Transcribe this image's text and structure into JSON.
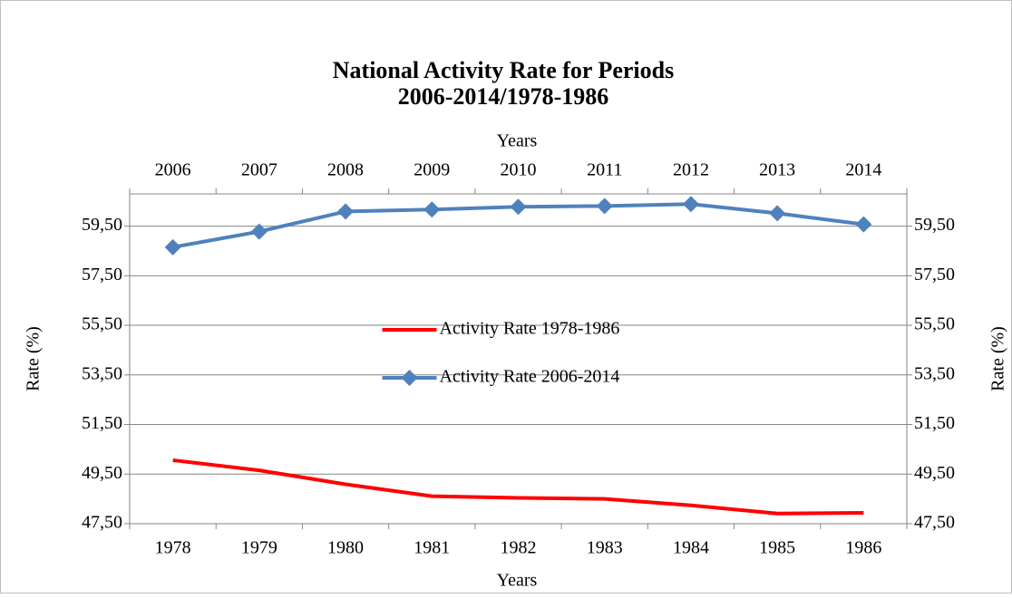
{
  "chart_data": {
    "type": "line",
    "title": [
      "National Activity Rate for Periods",
      "2006-2014/1978-1986"
    ],
    "x_label": "Years",
    "x2_label": "Years",
    "y_label": "Rate (%)",
    "y2_label": "Rate (%)",
    "categories": [
      "1978",
      "1979",
      "1980",
      "1981",
      "1982",
      "1983",
      "1984",
      "1985",
      "1986"
    ],
    "top_categories": [
      "2006",
      "2007",
      "2008",
      "2009",
      "2010",
      "2011",
      "2012",
      "2013",
      "2014"
    ],
    "series": [
      {
        "name": "Activity Rate 1978-1986",
        "color": "#ff0000",
        "x_axis": "bottom",
        "marker": "none",
        "values": [
          50.06,
          49.65,
          49.09,
          48.61,
          48.54,
          48.5,
          48.24,
          47.91,
          47.94
        ]
      },
      {
        "name": "Activity Rate 2006-2014",
        "color": "#4f81bd",
        "x_axis": "top",
        "marker": "diamond",
        "values": [
          58.65,
          59.28,
          60.09,
          60.17,
          60.28,
          60.31,
          60.39,
          60.02,
          59.57
        ]
      }
    ],
    "ylim": [
      47.5,
      60.8
    ],
    "yticks": [
      {
        "value": 47.5,
        "label": "47,50"
      },
      {
        "value": 49.5,
        "label": "49,50"
      },
      {
        "value": 51.5,
        "label": "51,50"
      },
      {
        "value": 53.5,
        "label": "53,50"
      },
      {
        "value": 55.5,
        "label": "55,50"
      },
      {
        "value": 57.5,
        "label": "57,50"
      },
      {
        "value": 59.5,
        "label": "59,50"
      }
    ],
    "grid": true,
    "legend": "center"
  }
}
